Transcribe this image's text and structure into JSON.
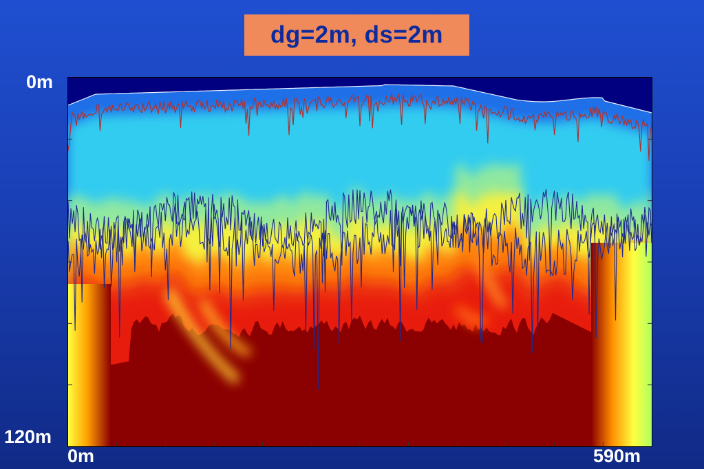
{
  "title": "dg=2m, ds=2m",
  "chart_data": {
    "type": "heatmap",
    "title": "dg=2m, ds=2m",
    "xlabel": "",
    "ylabel": "",
    "x_tick_labels": [
      "0m",
      "590m"
    ],
    "y_tick_labels": [
      "0m",
      "120m"
    ],
    "xlim": [
      0,
      590
    ],
    "ylim": [
      0,
      120
    ],
    "y_axis_inverted": true,
    "colormap": "jet",
    "background_color": "#000080",
    "overlay_lines": [
      {
        "color": "#b03030",
        "description": "near-surface boundary"
      },
      {
        "color": "#1e2a8f",
        "description": "lower boundary A"
      },
      {
        "color": "#1e2a8f",
        "description": "lower boundary B"
      }
    ]
  }
}
